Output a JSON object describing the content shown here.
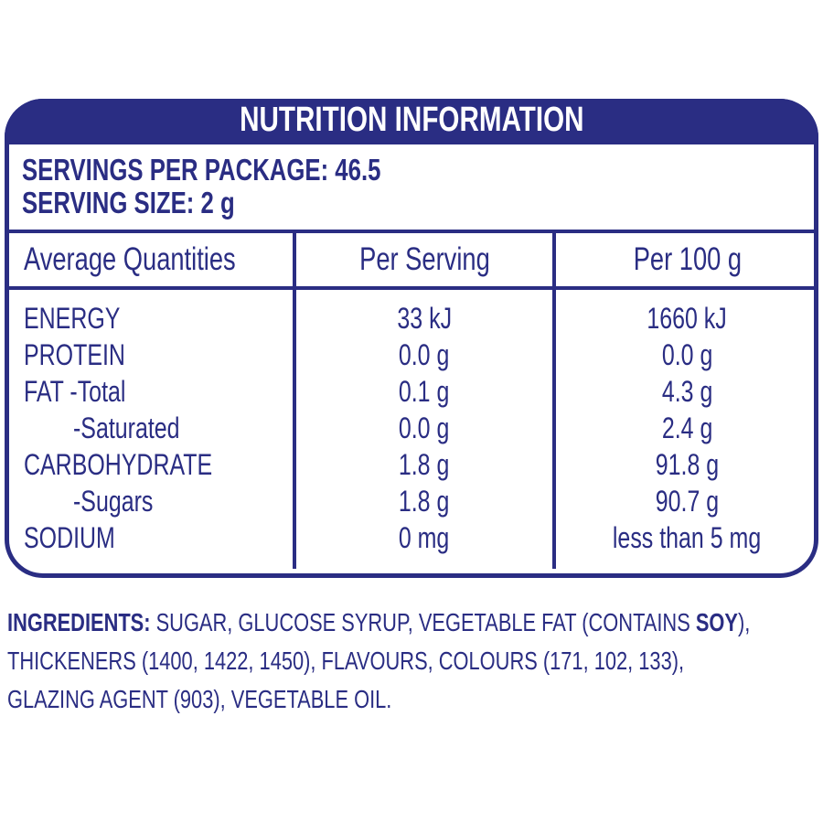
{
  "header": {
    "title": "NUTRITION INFORMATION"
  },
  "servings": {
    "per_package": "SERVINGS PER PACKAGE: 46.5",
    "size": "SERVING SIZE: 2 g"
  },
  "table": {
    "columns": [
      "Average Quantities",
      "Per Serving",
      "Per 100 g"
    ],
    "rows": [
      {
        "name": "ENERGY",
        "indent": false,
        "per_serving": "33 kJ",
        "per_100g": "1660 kJ"
      },
      {
        "name": "PROTEIN",
        "indent": false,
        "per_serving": "0.0 g",
        "per_100g": "0.0 g"
      },
      {
        "name": "FAT -Total",
        "indent": false,
        "per_serving": "0.1 g",
        "per_100g": "4.3 g"
      },
      {
        "name": "-Saturated",
        "indent": true,
        "per_serving": "0.0 g",
        "per_100g": "2.4 g"
      },
      {
        "name": "CARBOHYDRATE",
        "indent": false,
        "per_serving": "1.8 g",
        "per_100g": "91.8 g"
      },
      {
        "name": "-Sugars",
        "indent": true,
        "per_serving": "1.8 g",
        "per_100g": "90.7 g"
      },
      {
        "name": "SODIUM",
        "indent": false,
        "per_serving": "0 mg",
        "per_100g": "less than 5 mg"
      }
    ]
  },
  "ingredients": {
    "lines": [
      [
        {
          "text": "INGREDIENTS:",
          "bold": true
        },
        {
          "text": " SUGAR, GLUCOSE SYRUP, VEGETABLE FAT (CONTAINS ",
          "bold": false
        },
        {
          "text": "SOY",
          "bold": true
        },
        {
          "text": "),",
          "bold": false
        }
      ],
      [
        {
          "text": "THICKENERS (1400, 1422, 1450), FLAVOURS, COLOURS (171, 102, 133),",
          "bold": false
        }
      ],
      [
        {
          "text": "GLAZING AGENT (903), VEGETABLE OIL.",
          "bold": false
        }
      ]
    ]
  }
}
